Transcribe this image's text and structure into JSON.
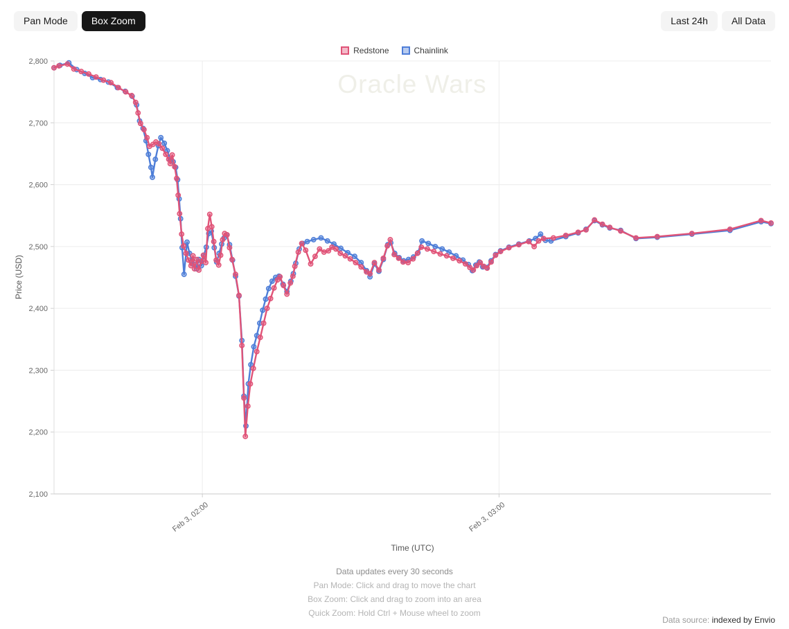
{
  "toolbar": {
    "pan_mode": "Pan Mode",
    "box_zoom": "Box Zoom",
    "last_24h": "Last 24h",
    "all_data": "All Data",
    "active_mode": "Box Zoom"
  },
  "legend": {
    "redstone": "Redstone",
    "chainlink": "Chainlink"
  },
  "footer": {
    "updates": "Data updates every 30 seconds",
    "pan_hint": "Pan Mode: Click and drag to move the chart",
    "box_hint": "Box Zoom: Click and drag to zoom into an area",
    "quick_hint": "Quick Zoom: Hold Ctrl + Mouse wheel to zoom",
    "data_source_label": "Data source:",
    "data_source_value": "indexed by Envio"
  },
  "chart_data": {
    "type": "line",
    "title": "Oracle Wars",
    "xlabel": "Time (UTC)",
    "ylabel": "Price (USD)",
    "x_unit": "minutes_after_midnight_utc_feb3",
    "xlim": [
      90,
      235
    ],
    "ylim": [
      2100,
      2800
    ],
    "grid": true,
    "legend_position": "top-center",
    "y_ticks": [
      2100,
      2200,
      2300,
      2400,
      2500,
      2600,
      2700,
      2800
    ],
    "x_ticks": [
      {
        "t": 120,
        "label": "Feb 3, 02:00"
      },
      {
        "t": 180,
        "label": "Feb 3, 03:00"
      }
    ],
    "series": [
      {
        "name": "Redstone",
        "color": "#e05377",
        "points": [
          [
            90,
            2789
          ],
          [
            91,
            2792
          ],
          [
            92.7,
            2795
          ],
          [
            94,
            2787
          ],
          [
            95.5,
            2783
          ],
          [
            97,
            2779
          ],
          [
            98.5,
            2774
          ],
          [
            100,
            2769
          ],
          [
            101.5,
            2765
          ],
          [
            103,
            2757
          ],
          [
            104.5,
            2750
          ],
          [
            105.7,
            2744
          ],
          [
            106.5,
            2733
          ],
          [
            107,
            2716
          ],
          [
            107.5,
            2699
          ],
          [
            108.2,
            2689
          ],
          [
            108.8,
            2676
          ],
          [
            109.3,
            2662
          ],
          [
            110,
            2665
          ],
          [
            110.6,
            2669
          ],
          [
            111.2,
            2666
          ],
          [
            111.9,
            2659
          ],
          [
            112.6,
            2649
          ],
          [
            113.2,
            2641
          ],
          [
            113.5,
            2634
          ],
          [
            113.9,
            2648
          ],
          [
            114.4,
            2629
          ],
          [
            114.8,
            2610
          ],
          [
            115.1,
            2583
          ],
          [
            115.4,
            2553
          ],
          [
            115.8,
            2520
          ],
          [
            116.2,
            2501
          ],
          [
            116.7,
            2489
          ],
          [
            117.2,
            2478
          ],
          [
            117.7,
            2469
          ],
          [
            118.1,
            2485
          ],
          [
            118.4,
            2464
          ],
          [
            118.9,
            2479
          ],
          [
            119.3,
            2462
          ],
          [
            119.8,
            2476
          ],
          [
            120.2,
            2486
          ],
          [
            120.7,
            2474
          ],
          [
            121.1,
            2529
          ],
          [
            121.5,
            2552
          ],
          [
            121.9,
            2532
          ],
          [
            122.3,
            2508
          ],
          [
            122.8,
            2478
          ],
          [
            123.3,
            2470
          ],
          [
            123.7,
            2486
          ],
          [
            124.1,
            2511
          ],
          [
            124.5,
            2521
          ],
          [
            125,
            2519
          ],
          [
            125.5,
            2498
          ],
          [
            126,
            2479
          ],
          [
            126.7,
            2455
          ],
          [
            127.4,
            2421
          ],
          [
            128,
            2340
          ],
          [
            128.4,
            2255
          ],
          [
            128.7,
            2193
          ],
          [
            129.2,
            2242
          ],
          [
            129.7,
            2278
          ],
          [
            130.3,
            2303
          ],
          [
            131,
            2330
          ],
          [
            131.7,
            2353
          ],
          [
            132.4,
            2376
          ],
          [
            133.1,
            2400
          ],
          [
            133.8,
            2416
          ],
          [
            134.5,
            2433
          ],
          [
            135.2,
            2446
          ],
          [
            135.7,
            2451
          ],
          [
            136.4,
            2437
          ],
          [
            137.1,
            2423
          ],
          [
            137.8,
            2441
          ],
          [
            138.3,
            2452
          ],
          [
            138.7,
            2468
          ],
          [
            139.4,
            2491
          ],
          [
            140.1,
            2505
          ],
          [
            140.9,
            2494
          ],
          [
            141.9,
            2472
          ],
          [
            142.8,
            2484
          ],
          [
            143.7,
            2496
          ],
          [
            144.6,
            2491
          ],
          [
            145.5,
            2493
          ],
          [
            146.2,
            2499
          ],
          [
            147,
            2496
          ],
          [
            147.9,
            2489
          ],
          [
            148.9,
            2485
          ],
          [
            149.9,
            2480
          ],
          [
            151,
            2474
          ],
          [
            152.1,
            2467
          ],
          [
            153.2,
            2459
          ],
          [
            153.9,
            2456
          ],
          [
            154.8,
            2474
          ],
          [
            155.7,
            2462
          ],
          [
            156.6,
            2481
          ],
          [
            157.4,
            2501
          ],
          [
            158,
            2511
          ],
          [
            158.8,
            2487
          ],
          [
            159.7,
            2481
          ],
          [
            160.6,
            2475
          ],
          [
            161.6,
            2474
          ],
          [
            162.6,
            2480
          ],
          [
            163.5,
            2489
          ],
          [
            164.3,
            2499
          ],
          [
            165.5,
            2496
          ],
          [
            166.8,
            2492
          ],
          [
            168.1,
            2488
          ],
          [
            169.4,
            2485
          ],
          [
            170.7,
            2481
          ],
          [
            172,
            2477
          ],
          [
            173.2,
            2472
          ],
          [
            174.1,
            2466
          ],
          [
            174.8,
            2462
          ],
          [
            175.5,
            2469
          ],
          [
            176.2,
            2474
          ],
          [
            176.9,
            2468
          ],
          [
            177.6,
            2465
          ],
          [
            178.4,
            2475
          ],
          [
            179.3,
            2486
          ],
          [
            180.3,
            2492
          ],
          [
            182,
            2498
          ],
          [
            184,
            2503
          ],
          [
            186,
            2508
          ],
          [
            187.1,
            2500
          ],
          [
            188,
            2509
          ],
          [
            189,
            2513
          ],
          [
            191,
            2514
          ],
          [
            193.5,
            2518
          ],
          [
            196,
            2523
          ],
          [
            197.6,
            2527
          ],
          [
            199.3,
            2543
          ],
          [
            200.9,
            2536
          ],
          [
            202.4,
            2531
          ],
          [
            204.6,
            2525
          ],
          [
            207.7,
            2514
          ],
          [
            212,
            2516
          ],
          [
            219,
            2521
          ],
          [
            226.7,
            2528
          ],
          [
            233,
            2542
          ],
          [
            235,
            2538
          ]
        ]
      },
      {
        "name": "Chainlink",
        "color": "#4e7ed8",
        "points": [
          [
            90,
            2789
          ],
          [
            91.2,
            2793
          ],
          [
            93,
            2797
          ],
          [
            94.6,
            2786
          ],
          [
            96.2,
            2780
          ],
          [
            97.8,
            2773
          ],
          [
            99.4,
            2770
          ],
          [
            101,
            2766
          ],
          [
            102.8,
            2757
          ],
          [
            104.4,
            2751
          ],
          [
            105.8,
            2743
          ],
          [
            106.7,
            2729
          ],
          [
            107.3,
            2703
          ],
          [
            108,
            2691
          ],
          [
            108.6,
            2671
          ],
          [
            109.1,
            2649
          ],
          [
            109.6,
            2628
          ],
          [
            109.9,
            2612
          ],
          [
            110.5,
            2641
          ],
          [
            111.1,
            2663
          ],
          [
            111.6,
            2676
          ],
          [
            112.3,
            2667
          ],
          [
            112.9,
            2655
          ],
          [
            113.5,
            2640
          ],
          [
            114.1,
            2637
          ],
          [
            114.6,
            2628
          ],
          [
            115,
            2608
          ],
          [
            115.3,
            2577
          ],
          [
            115.6,
            2545
          ],
          [
            115.9,
            2498
          ],
          [
            116.3,
            2455
          ],
          [
            116.9,
            2507
          ],
          [
            117.4,
            2489
          ],
          [
            117.9,
            2477
          ],
          [
            118.3,
            2471
          ],
          [
            118.8,
            2464
          ],
          [
            119.3,
            2479
          ],
          [
            119.8,
            2469
          ],
          [
            120.3,
            2486
          ],
          [
            120.8,
            2499
          ],
          [
            121.3,
            2521
          ],
          [
            121.8,
            2525
          ],
          [
            122.4,
            2498
          ],
          [
            122.9,
            2475
          ],
          [
            123.4,
            2489
          ],
          [
            123.9,
            2504
          ],
          [
            124.4,
            2514
          ],
          [
            124.9,
            2519
          ],
          [
            125.5,
            2503
          ],
          [
            126.1,
            2478
          ],
          [
            126.7,
            2452
          ],
          [
            127.4,
            2420
          ],
          [
            128,
            2348
          ],
          [
            128.4,
            2258
          ],
          [
            128.8,
            2210
          ],
          [
            129.3,
            2278
          ],
          [
            129.8,
            2309
          ],
          [
            130.4,
            2338
          ],
          [
            131,
            2356
          ],
          [
            131.6,
            2376
          ],
          [
            132.2,
            2397
          ],
          [
            132.8,
            2415
          ],
          [
            133.4,
            2432
          ],
          [
            134.1,
            2444
          ],
          [
            134.8,
            2450
          ],
          [
            135.5,
            2452
          ],
          [
            136.3,
            2439
          ],
          [
            137.1,
            2427
          ],
          [
            137.9,
            2444
          ],
          [
            138.4,
            2456
          ],
          [
            138.9,
            2473
          ],
          [
            139.6,
            2496
          ],
          [
            140.3,
            2505
          ],
          [
            141.2,
            2508
          ],
          [
            142.5,
            2511
          ],
          [
            144,
            2514
          ],
          [
            145.3,
            2509
          ],
          [
            146.6,
            2504
          ],
          [
            148,
            2497
          ],
          [
            149.4,
            2490
          ],
          [
            150.8,
            2484
          ],
          [
            152.1,
            2474
          ],
          [
            153.2,
            2461
          ],
          [
            153.9,
            2451
          ],
          [
            154.8,
            2472
          ],
          [
            155.7,
            2460
          ],
          [
            156.6,
            2479
          ],
          [
            157.5,
            2503
          ],
          [
            158.1,
            2506
          ],
          [
            158.9,
            2489
          ],
          [
            159.8,
            2482
          ],
          [
            160.7,
            2477
          ],
          [
            161.7,
            2479
          ],
          [
            162.7,
            2483
          ],
          [
            163.6,
            2490
          ],
          [
            164.4,
            2509
          ],
          [
            165.7,
            2505
          ],
          [
            167.1,
            2500
          ],
          [
            168.5,
            2496
          ],
          [
            169.9,
            2491
          ],
          [
            171.3,
            2485
          ],
          [
            172.7,
            2478
          ],
          [
            173.8,
            2471
          ],
          [
            174.6,
            2461
          ],
          [
            175.3,
            2470
          ],
          [
            176,
            2475
          ],
          [
            176.7,
            2467
          ],
          [
            177.5,
            2466
          ],
          [
            178.4,
            2477
          ],
          [
            179.3,
            2487
          ],
          [
            180.3,
            2493
          ],
          [
            182,
            2499
          ],
          [
            184,
            2504
          ],
          [
            186.1,
            2509
          ],
          [
            187.4,
            2513
          ],
          [
            188.4,
            2520
          ],
          [
            189.4,
            2510
          ],
          [
            190.5,
            2509
          ],
          [
            193.5,
            2516
          ],
          [
            196,
            2522
          ],
          [
            197.6,
            2528
          ],
          [
            199.3,
            2542
          ],
          [
            200.9,
            2535
          ],
          [
            202.4,
            2530
          ],
          [
            204.6,
            2526
          ],
          [
            207.7,
            2513
          ],
          [
            212,
            2515
          ],
          [
            219,
            2520
          ],
          [
            226.7,
            2526
          ],
          [
            233,
            2540
          ],
          [
            235,
            2537
          ]
        ]
      }
    ]
  }
}
